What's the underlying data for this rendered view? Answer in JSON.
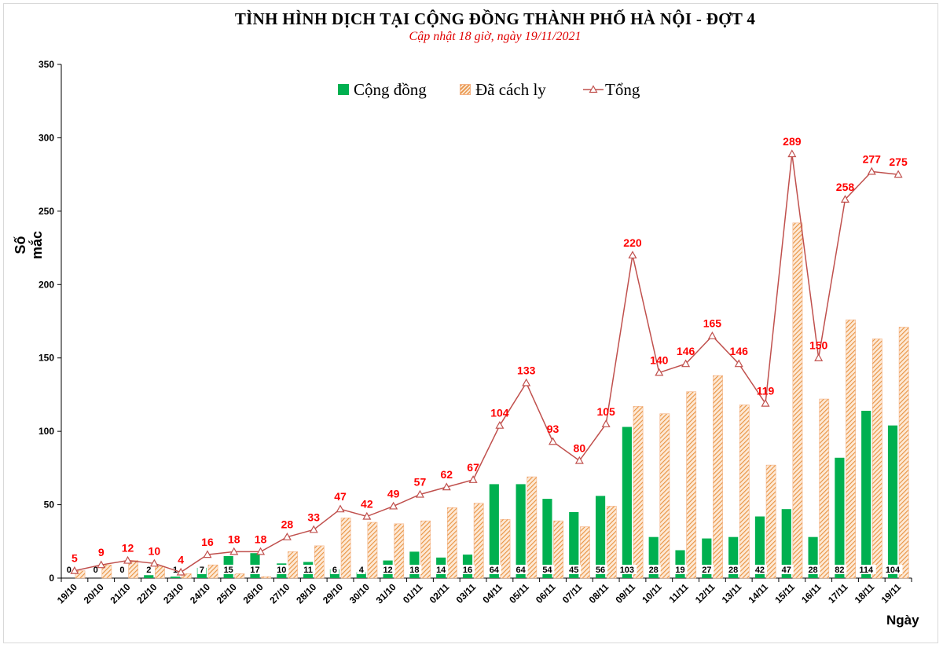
{
  "chart_data": {
    "type": "bar",
    "title": "TÌNH HÌNH DỊCH TẠI CỘNG ĐỒNG THÀNH PHỐ HÀ NỘI - ĐỢT 4",
    "subtitle": "Cập nhật 18 giờ, ngày 19/11/2021",
    "xlabel": "Ngày",
    "ylabel": "Số mắc",
    "ylim": [
      0,
      350
    ],
    "yticks": [
      0,
      50,
      100,
      150,
      200,
      250,
      300,
      350
    ],
    "grid": false,
    "legend_position": "top",
    "categories": [
      "19/10",
      "20/10",
      "21/10",
      "22/10",
      "23/10",
      "24/10",
      "25/10",
      "26/10",
      "27/10",
      "28/10",
      "29/10",
      "30/10",
      "31/10",
      "01/11",
      "02/11",
      "03/11",
      "04/11",
      "05/11",
      "06/11",
      "07/11",
      "08/11",
      "09/11",
      "10/11",
      "11/11",
      "12/11",
      "13/11",
      "14/11",
      "15/11",
      "16/11",
      "17/11",
      "18/11",
      "19/11"
    ],
    "series": [
      {
        "name": "Cộng đồng",
        "kind": "bar",
        "color": "#00b050",
        "values": [
          0,
          0,
          0,
          2,
          1,
          7,
          15,
          17,
          10,
          11,
          6,
          4,
          12,
          18,
          14,
          16,
          64,
          64,
          54,
          45,
          56,
          103,
          28,
          19,
          27,
          28,
          42,
          47,
          28,
          82,
          114,
          104
        ]
      },
      {
        "name": "Đã cách ly",
        "kind": "bar",
        "color": "#ed9a52",
        "values": [
          5,
          9,
          12,
          8,
          3,
          9,
          3,
          1,
          18,
          22,
          41,
          38,
          37,
          39,
          48,
          51,
          40,
          69,
          39,
          35,
          49,
          117,
          112,
          127,
          138,
          118,
          77,
          242,
          122,
          176,
          163,
          171
        ]
      },
      {
        "name": "Tổng",
        "kind": "line",
        "color": "#c0504d",
        "values": [
          5,
          9,
          12,
          10,
          4,
          16,
          18,
          18,
          28,
          33,
          47,
          42,
          49,
          57,
          62,
          67,
          104,
          133,
          93,
          80,
          105,
          220,
          140,
          146,
          165,
          146,
          119,
          289,
          150,
          258,
          277,
          275
        ]
      }
    ],
    "label_color": "#ff0000"
  }
}
